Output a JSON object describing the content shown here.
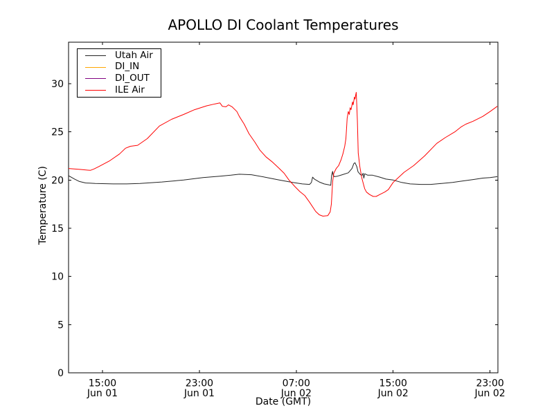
{
  "figure": {
    "title": "APOLLO DI Coolant Temperatures",
    "xlabel": "Date (GMT)",
    "ylabel": "Temperature (C)"
  },
  "chart_data": {
    "type": "line",
    "title": "APOLLO DI Coolant Temperatures",
    "xlabel": "Date (GMT)",
    "ylabel": "Temperature (C)",
    "x_unit": "hours since Jun 01 00:00 GMT",
    "xlim": [
      12.2,
      47.65
    ],
    "ylim": [
      0,
      34.3
    ],
    "grid": false,
    "legend_position": "upper left",
    "x_ticks": [
      {
        "hour": 15,
        "time": "15:00",
        "date": "Jun 01"
      },
      {
        "hour": 23,
        "time": "23:00",
        "date": "Jun 01"
      },
      {
        "hour": 31,
        "time": "07:00",
        "date": "Jun 02"
      },
      {
        "hour": 39,
        "time": "15:00",
        "date": "Jun 02"
      },
      {
        "hour": 47,
        "time": "23:00",
        "date": "Jun 02"
      }
    ],
    "y_ticks": [
      0,
      5,
      10,
      15,
      20,
      25,
      30
    ],
    "series": [
      {
        "name": "Utah Air",
        "color": "#222222",
        "points": [
          [
            12.2,
            20.45
          ],
          [
            12.7,
            20.1
          ],
          [
            13.1,
            19.85
          ],
          [
            13.6,
            19.7
          ],
          [
            14.4,
            19.65
          ],
          [
            15.9,
            19.6
          ],
          [
            17.0,
            19.6
          ],
          [
            18.1,
            19.65
          ],
          [
            19.9,
            19.8
          ],
          [
            21.7,
            20.0
          ],
          [
            23.3,
            20.25
          ],
          [
            24.7,
            20.4
          ],
          [
            25.6,
            20.5
          ],
          [
            26.3,
            20.6
          ],
          [
            27.3,
            20.55
          ],
          [
            28.4,
            20.3
          ],
          [
            29.6,
            20.0
          ],
          [
            30.7,
            19.75
          ],
          [
            31.5,
            19.6
          ],
          [
            32.1,
            19.55
          ],
          [
            32.25,
            19.75
          ],
          [
            32.35,
            20.3
          ],
          [
            32.5,
            20.1
          ],
          [
            32.9,
            19.8
          ],
          [
            33.3,
            19.6
          ],
          [
            33.7,
            19.5
          ],
          [
            33.85,
            19.45
          ],
          [
            33.92,
            20.5
          ],
          [
            34.0,
            20.9
          ],
          [
            34.05,
            20.5
          ],
          [
            34.15,
            20.35
          ],
          [
            34.4,
            20.4
          ],
          [
            34.8,
            20.55
          ],
          [
            35.3,
            20.75
          ],
          [
            35.6,
            21.2
          ],
          [
            35.75,
            21.7
          ],
          [
            35.85,
            21.8
          ],
          [
            36.0,
            21.4
          ],
          [
            36.1,
            20.85
          ],
          [
            36.3,
            20.55
          ],
          [
            36.45,
            20.5
          ],
          [
            36.52,
            20.7
          ],
          [
            36.58,
            20.2
          ],
          [
            36.65,
            20.65
          ],
          [
            36.9,
            20.5
          ],
          [
            37.3,
            20.5
          ],
          [
            37.9,
            20.3
          ],
          [
            38.4,
            20.1
          ],
          [
            39.0,
            20.0
          ],
          [
            39.7,
            19.75
          ],
          [
            40.4,
            19.6
          ],
          [
            41.3,
            19.55
          ],
          [
            42.1,
            19.55
          ],
          [
            43.0,
            19.65
          ],
          [
            43.9,
            19.75
          ],
          [
            44.7,
            19.9
          ],
          [
            45.6,
            20.05
          ],
          [
            46.4,
            20.2
          ],
          [
            47.0,
            20.25
          ],
          [
            47.6,
            20.35
          ]
        ]
      },
      {
        "name": "DI_IN",
        "color": "#ffa500",
        "points": []
      },
      {
        "name": "DI_OUT",
        "color": "#800080",
        "points": []
      },
      {
        "name": "ILE Air",
        "color": "#ff0000",
        "points": [
          [
            12.2,
            21.2
          ],
          [
            13.2,
            21.1
          ],
          [
            14.0,
            21.0
          ],
          [
            14.3,
            21.15
          ],
          [
            14.7,
            21.4
          ],
          [
            15.6,
            22.0
          ],
          [
            16.4,
            22.7
          ],
          [
            16.9,
            23.3
          ],
          [
            17.3,
            23.5
          ],
          [
            17.9,
            23.6
          ],
          [
            18.7,
            24.3
          ],
          [
            19.7,
            25.6
          ],
          [
            20.7,
            26.3
          ],
          [
            21.7,
            26.8
          ],
          [
            22.6,
            27.3
          ],
          [
            23.6,
            27.7
          ],
          [
            24.3,
            27.9
          ],
          [
            24.7,
            28.0
          ],
          [
            24.9,
            27.65
          ],
          [
            25.2,
            27.6
          ],
          [
            25.4,
            27.8
          ],
          [
            25.7,
            27.6
          ],
          [
            26.1,
            27.1
          ],
          [
            26.3,
            26.6
          ],
          [
            26.7,
            25.8
          ],
          [
            27.1,
            24.8
          ],
          [
            27.6,
            23.9
          ],
          [
            28.0,
            23.1
          ],
          [
            28.5,
            22.4
          ],
          [
            29.0,
            21.9
          ],
          [
            29.6,
            21.2
          ],
          [
            30.0,
            20.7
          ],
          [
            30.4,
            20.0
          ],
          [
            30.9,
            19.3
          ],
          [
            31.3,
            18.8
          ],
          [
            31.7,
            18.4
          ],
          [
            32.1,
            17.7
          ],
          [
            32.6,
            16.75
          ],
          [
            32.9,
            16.4
          ],
          [
            33.2,
            16.25
          ],
          [
            33.6,
            16.3
          ],
          [
            33.8,
            16.7
          ],
          [
            33.9,
            17.5
          ],
          [
            34.0,
            19.8
          ],
          [
            34.1,
            20.7
          ],
          [
            34.3,
            21.2
          ],
          [
            34.5,
            21.5
          ],
          [
            34.7,
            22.1
          ],
          [
            34.85,
            22.7
          ],
          [
            35.0,
            23.5
          ],
          [
            35.1,
            24.3
          ],
          [
            35.15,
            25.3
          ],
          [
            35.2,
            26.4
          ],
          [
            35.3,
            27.1
          ],
          [
            35.38,
            26.8
          ],
          [
            35.45,
            27.5
          ],
          [
            35.52,
            27.3
          ],
          [
            35.6,
            27.8
          ],
          [
            35.65,
            28.1
          ],
          [
            35.7,
            27.8
          ],
          [
            35.8,
            28.6
          ],
          [
            35.85,
            28.4
          ],
          [
            35.95,
            29.1
          ],
          [
            36.0,
            27.8
          ],
          [
            36.05,
            26.1
          ],
          [
            36.12,
            22.8
          ],
          [
            36.25,
            21.4
          ],
          [
            36.4,
            20.3
          ],
          [
            36.5,
            19.8
          ],
          [
            36.65,
            19.1
          ],
          [
            36.8,
            18.75
          ],
          [
            37.05,
            18.5
          ],
          [
            37.35,
            18.3
          ],
          [
            37.6,
            18.3
          ],
          [
            37.9,
            18.5
          ],
          [
            38.3,
            18.75
          ],
          [
            38.6,
            19.0
          ],
          [
            39.0,
            19.75
          ],
          [
            39.9,
            20.8
          ],
          [
            40.7,
            21.5
          ],
          [
            41.6,
            22.5
          ],
          [
            42.6,
            23.8
          ],
          [
            43.3,
            24.4
          ],
          [
            44.1,
            25.0
          ],
          [
            44.6,
            25.5
          ],
          [
            45.0,
            25.8
          ],
          [
            45.6,
            26.1
          ],
          [
            46.4,
            26.6
          ],
          [
            47.0,
            27.1
          ],
          [
            47.6,
            27.65
          ]
        ]
      }
    ]
  }
}
